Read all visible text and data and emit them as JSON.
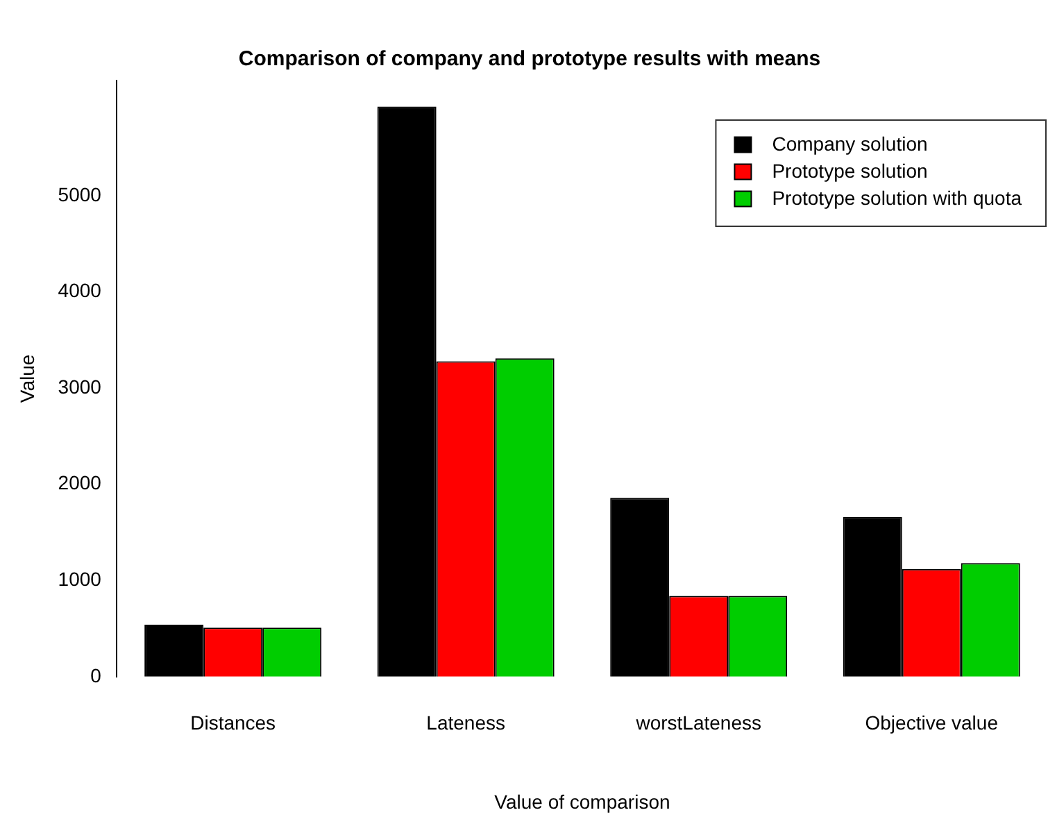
{
  "chart_data": {
    "type": "bar",
    "title": "Comparison of company and prototype results with means",
    "xlabel": "Value of comparison",
    "ylabel": "Value",
    "categories": [
      "Distances",
      "Lateness",
      "worstLateness",
      "Objective value"
    ],
    "series": [
      {
        "name": "Company solution",
        "color": "#000000",
        "values": [
          540,
          5930,
          1860,
          1660
        ]
      },
      {
        "name": "Prototype solution",
        "color": "#ff0000",
        "values": [
          510,
          3280,
          840,
          1120
        ]
      },
      {
        "name": "Prototype solution with quota",
        "color": "#00cd00",
        "values": [
          510,
          3310,
          840,
          1180
        ]
      }
    ],
    "ylim": [
      0,
      6200
    ],
    "yticks": [
      0,
      1000,
      2000,
      3000,
      4000,
      5000
    ],
    "grid": false,
    "legend": "top right"
  }
}
